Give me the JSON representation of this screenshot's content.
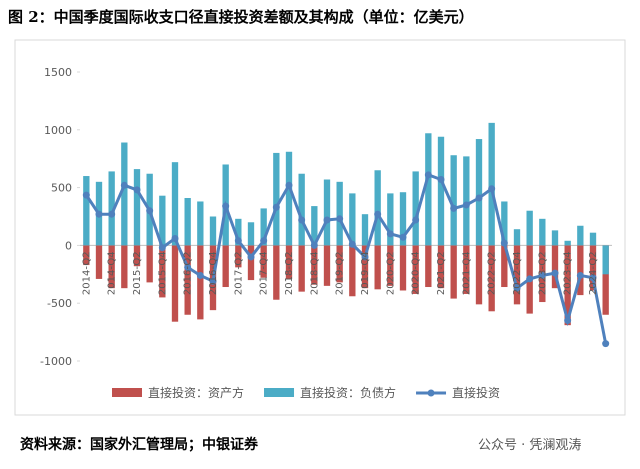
{
  "chart_data": {
    "type": "bar_line",
    "title": "图 2：中国季度国际收支口径直接投资差额及其构成（单位：亿美元）",
    "source": "资料来源：国家外汇管理局；中银证券",
    "watermark": "公众号 · 凭澜观涛",
    "categories": [
      "2014-Q2",
      null,
      "2014-Q4",
      null,
      "2015-Q2",
      null,
      "2015-Q4",
      null,
      "2016-Q2",
      null,
      "2016-Q4",
      null,
      "2017-Q2",
      null,
      "2017-Q4",
      null,
      "2018-Q2",
      null,
      "2018-Q4",
      null,
      "2019-Q2",
      null,
      "2019-Q4",
      null,
      "2020-Q2",
      null,
      "2020-Q4",
      null,
      "2021-Q2",
      null,
      "2021-Q4",
      null,
      "2022-Q2",
      null,
      "2022-Q4",
      null,
      "2023-Q2",
      null,
      "2023-Q4",
      null,
      "2024-Q2",
      null
    ],
    "series": [
      {
        "name": "直接投资：资产方",
        "color": "#c0504d",
        "kind": "bar",
        "values": [
          -170,
          -290,
          -370,
          -370,
          -180,
          -320,
          -450,
          -660,
          -600,
          -640,
          -560,
          -360,
          -190,
          -300,
          -280,
          -470,
          -290,
          -400,
          -340,
          -350,
          -320,
          -440,
          -370,
          -380,
          -350,
          -390,
          -420,
          -360,
          -370,
          -460,
          -420,
          -510,
          -570,
          -360,
          -510,
          -590,
          -490,
          -370,
          -690,
          -430,
          -390,
          -600
        ]
      },
      {
        "name": "直接投资：负债方",
        "color": "#4bacc6",
        "kind": "bar",
        "values": [
          600,
          550,
          640,
          890,
          660,
          620,
          430,
          720,
          410,
          380,
          250,
          700,
          230,
          200,
          320,
          800,
          810,
          620,
          340,
          570,
          550,
          450,
          270,
          650,
          450,
          460,
          640,
          970,
          940,
          780,
          770,
          920,
          1060,
          380,
          140,
          300,
          230,
          130,
          40,
          170,
          110,
          -250
        ]
      },
      {
        "name": "直接投资",
        "color": "#4f81bd",
        "kind": "line",
        "values": [
          435,
          270,
          270,
          520,
          480,
          300,
          -20,
          60,
          -190,
          -260,
          -310,
          340,
          40,
          -100,
          40,
          330,
          520,
          220,
          0,
          220,
          230,
          10,
          -100,
          270,
          100,
          70,
          220,
          610,
          570,
          320,
          350,
          410,
          490,
          20,
          -370,
          -290,
          -260,
          -240,
          -650,
          -260,
          -280,
          -850
        ]
      }
    ],
    "ylim": [
      -1000,
      1500
    ],
    "yticks": [
      -1000,
      -500,
      0,
      500,
      1000,
      1500
    ],
    "legend": "bottom"
  }
}
